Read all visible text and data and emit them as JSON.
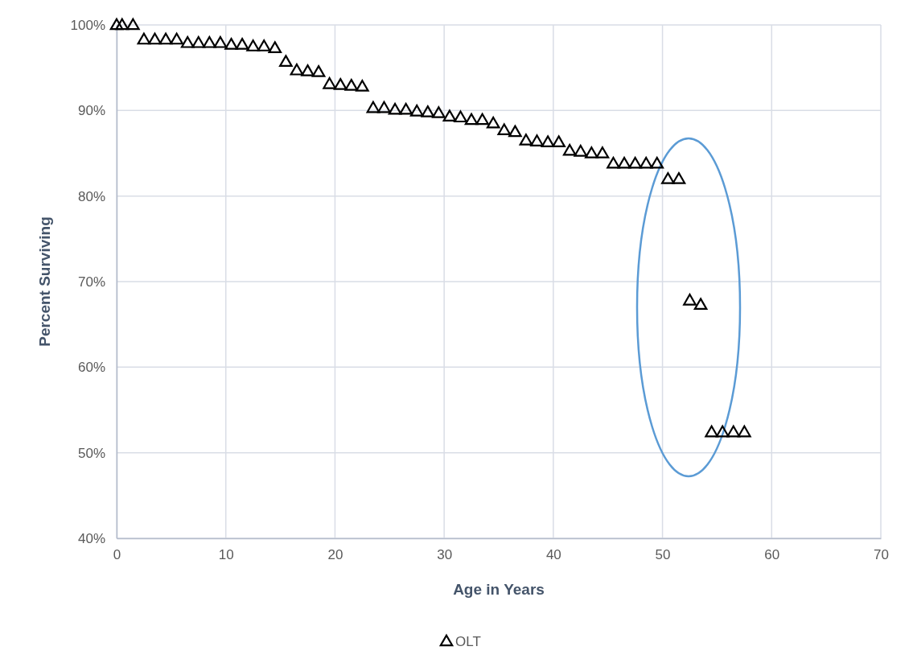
{
  "chart_data": {
    "type": "scatter",
    "xlabel": "Age in Years",
    "ylabel": "Percent Surviving",
    "xlim": [
      0,
      70
    ],
    "xticks": [
      0,
      10,
      20,
      30,
      40,
      50,
      60,
      70
    ],
    "ylim": [
      40,
      100
    ],
    "yticks": [
      {
        "value": 40,
        "label": "40%"
      },
      {
        "value": 50,
        "label": "50%"
      },
      {
        "value": 60,
        "label": "60%"
      },
      {
        "value": 70,
        "label": "70%"
      },
      {
        "value": 80,
        "label": "80%"
      },
      {
        "value": 90,
        "label": "90%"
      },
      {
        "value": 100,
        "label": "100%"
      }
    ],
    "grid": true,
    "legend": "bottom",
    "marker": "triangle",
    "series": [
      {
        "name": "OLT",
        "color": "#000000",
        "x": [
          0,
          0.5,
          1.5,
          2.5,
          3.5,
          4.5,
          5.5,
          6.5,
          7.5,
          8.5,
          9.5,
          10.5,
          11.5,
          12.5,
          13.5,
          14.5,
          15.5,
          16.5,
          17.5,
          18.5,
          19.5,
          20.5,
          21.5,
          22.5,
          23.5,
          24.5,
          25.5,
          26.5,
          27.5,
          28.5,
          29.5,
          30.5,
          31.5,
          32.5,
          33.5,
          34.5,
          35.5,
          36.5,
          37.5,
          38.5,
          39.5,
          40.5,
          41.5,
          42.5,
          43.5,
          44.5,
          45.5,
          46.5,
          47.5,
          48.5,
          49.5,
          50.5,
          51.5,
          52.5,
          53.5,
          54.5,
          55.5,
          56.5,
          57.5
        ],
        "values": [
          100,
          100,
          100,
          98.3,
          98.3,
          98.3,
          98.3,
          97.9,
          97.9,
          97.9,
          97.9,
          97.7,
          97.7,
          97.5,
          97.5,
          97.3,
          95.7,
          94.7,
          94.6,
          94.5,
          93.1,
          93.0,
          92.9,
          92.8,
          90.3,
          90.3,
          90.1,
          90.1,
          89.9,
          89.8,
          89.7,
          89.3,
          89.2,
          88.9,
          88.9,
          88.5,
          87.7,
          87.5,
          86.5,
          86.4,
          86.3,
          86.3,
          85.3,
          85.2,
          85.0,
          85.0,
          83.8,
          83.8,
          83.8,
          83.8,
          83.8,
          82.0,
          82.0,
          67.8,
          67.3,
          52.4,
          52.4,
          52.4,
          52.4
        ]
      }
    ]
  }
}
